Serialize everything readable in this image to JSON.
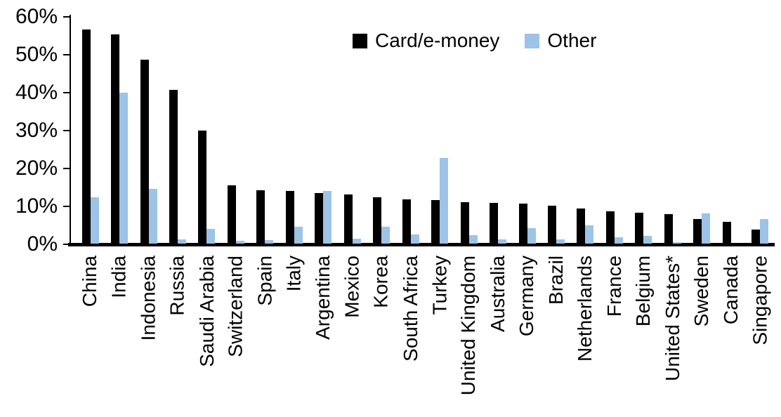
{
  "chart_data": {
    "type": "bar",
    "title": "",
    "xlabel": "",
    "ylabel": "",
    "categories": [
      "China",
      "India",
      "Indonesia",
      "Russia",
      "Saudi Arabia",
      "Switzerland",
      "Spain",
      "Italy",
      "Argentina",
      "Mexico",
      "Korea",
      "South Africa",
      "Turkey",
      "United Kingdom",
      "Australia",
      "Germany",
      "Brazil",
      "Netherlands",
      "France",
      "Belgium",
      "United States*",
      "Sweden",
      "Canada",
      "Singapore"
    ],
    "series": [
      {
        "name": "Card/e-money",
        "color": "#000000",
        "values": [
          56.4,
          55.2,
          48.5,
          40.5,
          29.8,
          15.4,
          14.1,
          13.9,
          13.3,
          12.9,
          12.2,
          11.7,
          11.4,
          11.0,
          10.8,
          10.6,
          10.0,
          9.2,
          8.6,
          8.2,
          7.8,
          6.4,
          5.8,
          3.7
        ]
      },
      {
        "name": "Other",
        "color": "#9DC3E6",
        "values": [
          12.3,
          39.8,
          14.4,
          1.1,
          3.8,
          0.8,
          0.9,
          4.5,
          13.8,
          1.3,
          4.5,
          2.4,
          22.5,
          2.3,
          1.1,
          4.0,
          1.2,
          4.9,
          1.6,
          2.0,
          0.4,
          8.0,
          0.0,
          6.5
        ]
      }
    ],
    "ylim": [
      0,
      60
    ],
    "yticks": [
      "0%",
      "10%",
      "20%",
      "30%",
      "40%",
      "50%",
      "60%"
    ],
    "grid": false,
    "legend_position": "top-center"
  }
}
